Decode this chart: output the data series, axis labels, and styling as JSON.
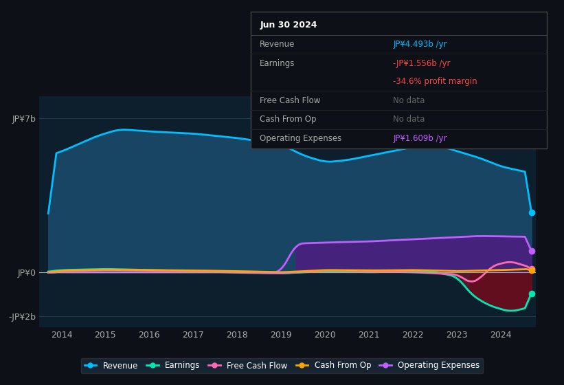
{
  "background_color": "#0d1117",
  "plot_bg_color": "#0d1f2d",
  "ylim": [
    -2500000000.0,
    8000000000.0
  ],
  "xlim_start": 2013.5,
  "xlim_end": 2024.8,
  "xticks": [
    2014,
    2015,
    2016,
    2017,
    2018,
    2019,
    2020,
    2021,
    2022,
    2023,
    2024
  ],
  "ytick_labels": [
    "JP¥7b",
    "JP¥0",
    "-JP¥2b"
  ],
  "ytick_vals": [
    7000000000.0,
    0,
    -2000000000.0
  ],
  "revenue_color": "#00bfff",
  "earnings_color": "#00e8b0",
  "fcf_color": "#ff69b4",
  "cashfromop_color": "#ffa500",
  "opex_color": "#bf5fff",
  "fill_revenue_color": "#1a4a6b",
  "fill_opex_color": "#4b2080",
  "fill_earnings_neg_color": "#5a1a2a",
  "info_table": {
    "date": "Jun 30 2024",
    "revenue_label": "Revenue",
    "revenue_value": "JP¥4.493b /yr",
    "revenue_color": "#00bfff",
    "earnings_label": "Earnings",
    "earnings_value": "-JP¥1.556b /yr",
    "earnings_color": "#ff4444",
    "margin_value": "-34.6% profit margin",
    "margin_color": "#ff4444",
    "fcf_label": "Free Cash Flow",
    "fcf_value": "No data",
    "cashfromop_label": "Cash From Op",
    "cashfromop_value": "No data",
    "opex_label": "Operating Expenses",
    "opex_value": "JP¥1.609b /yr",
    "opex_color": "#bf5fff"
  },
  "legend": [
    {
      "label": "Revenue",
      "color": "#00bfff"
    },
    {
      "label": "Earnings",
      "color": "#00e8b0"
    },
    {
      "label": "Free Cash Flow",
      "color": "#ff69b4"
    },
    {
      "label": "Cash From Op",
      "color": "#ffa500"
    },
    {
      "label": "Operating Expenses",
      "color": "#bf5fff"
    }
  ]
}
